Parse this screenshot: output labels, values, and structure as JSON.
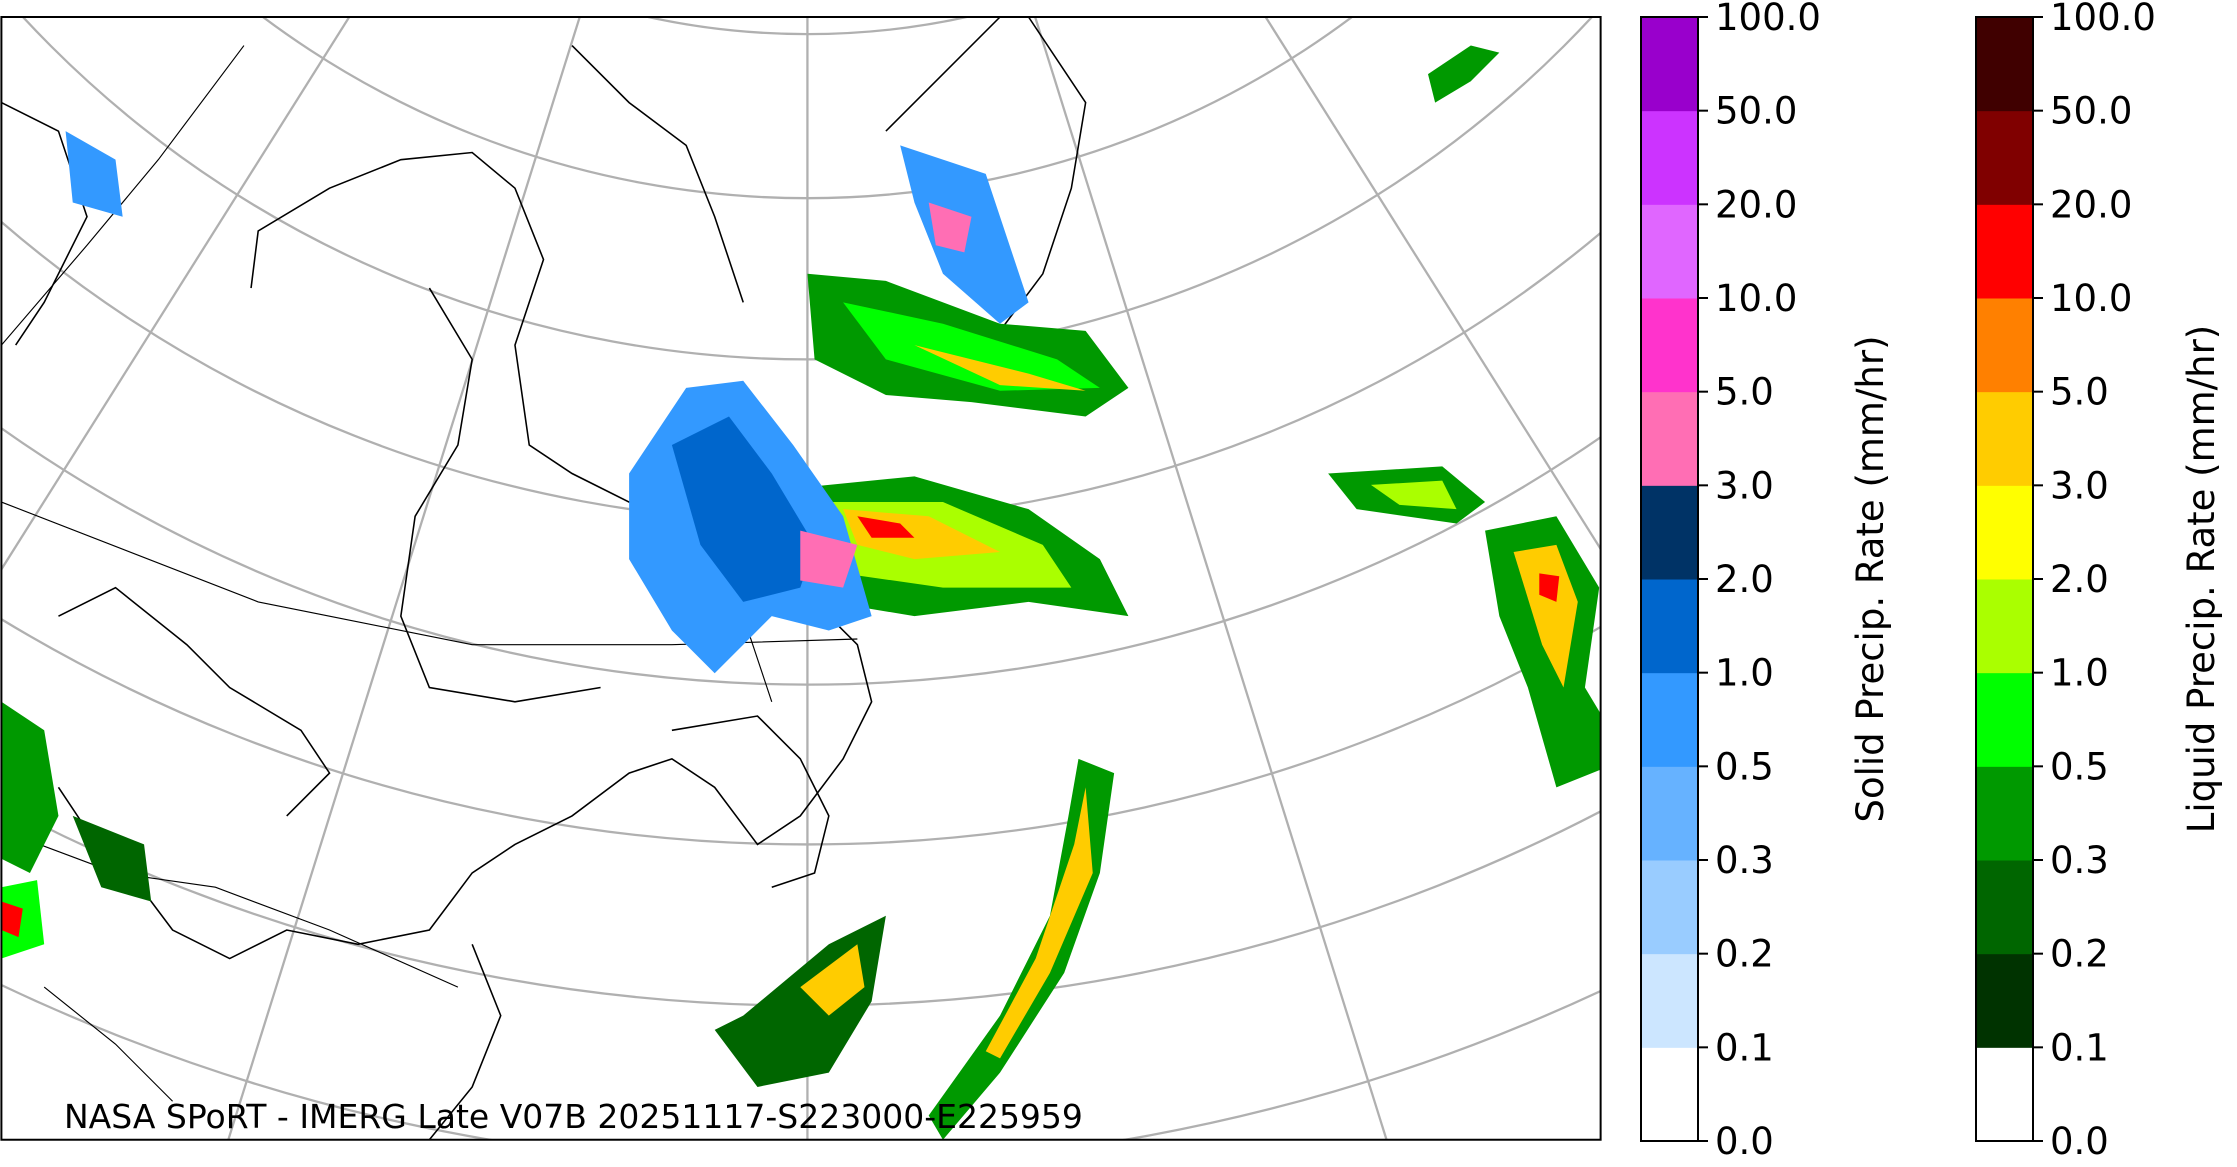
{
  "caption": "NASA SPoRT - IMERG Late V07B 20251117-S223000-E225959",
  "colorbars": [
    {
      "label": "Solid Precip. Rate (mm/hr)",
      "ticks": [
        "0.0",
        "0.1",
        "0.2",
        "0.3",
        "0.5",
        "1.0",
        "2.0",
        "3.0",
        "5.0",
        "10.0",
        "20.0",
        "50.0",
        "100.0"
      ],
      "colors": [
        "#ffffff",
        "#cce6ff",
        "#99ccff",
        "#66b2ff",
        "#3399ff",
        "#0066cc",
        "#003366",
        "#ff6eb4",
        "#ff33cc",
        "#e066ff",
        "#cc33ff",
        "#9900cc"
      ]
    },
    {
      "label": "Liquid Precip. Rate (mm/hr)",
      "ticks": [
        "0.0",
        "0.1",
        "0.2",
        "0.3",
        "0.5",
        "1.0",
        "2.0",
        "3.0",
        "5.0",
        "10.0",
        "20.0",
        "50.0",
        "100.0"
      ],
      "colors": [
        "#ffffff",
        "#003300",
        "#006600",
        "#009900",
        "#00ff00",
        "#aaff00",
        "#ffff00",
        "#ffcc00",
        "#ff8000",
        "#ff0000",
        "#800000",
        "#400000"
      ]
    }
  ]
}
